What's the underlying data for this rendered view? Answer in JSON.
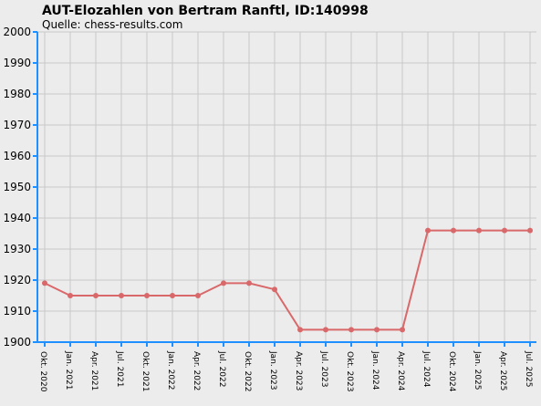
{
  "chart_data": {
    "type": "line",
    "title": "AUT-Elozahlen von Bertram Ranftl, ID:140998",
    "subtitle": "Quelle: chess-results.com",
    "categories": [
      "Okt. 2020",
      "Jan. 2021",
      "Apr. 2021",
      "Jul. 2021",
      "Okt. 2021",
      "Jan. 2022",
      "Apr. 2022",
      "Jul. 2022",
      "Okt. 2022",
      "Jan. 2023",
      "Apr. 2023",
      "Jul. 2023",
      "Okt. 2023",
      "Jan. 2024",
      "Apr. 2024",
      "Jul. 2024",
      "Okt. 2024",
      "Jan. 2025",
      "Apr. 2025",
      "Jul. 2025"
    ],
    "series": [
      {
        "color": "#d9686a",
        "values": [
          1919,
          1915,
          1915,
          1915,
          1915,
          1915,
          1915,
          1919,
          1919,
          1917,
          1904,
          1904,
          1904,
          1904,
          1904,
          1936,
          1936,
          1936,
          1936,
          1936
        ]
      }
    ],
    "ylim": [
      1900,
      2000
    ],
    "yticks": [
      1900,
      1910,
      1920,
      1930,
      1940,
      1950,
      1960,
      1970,
      1980,
      1990,
      2000
    ],
    "grid": true
  }
}
